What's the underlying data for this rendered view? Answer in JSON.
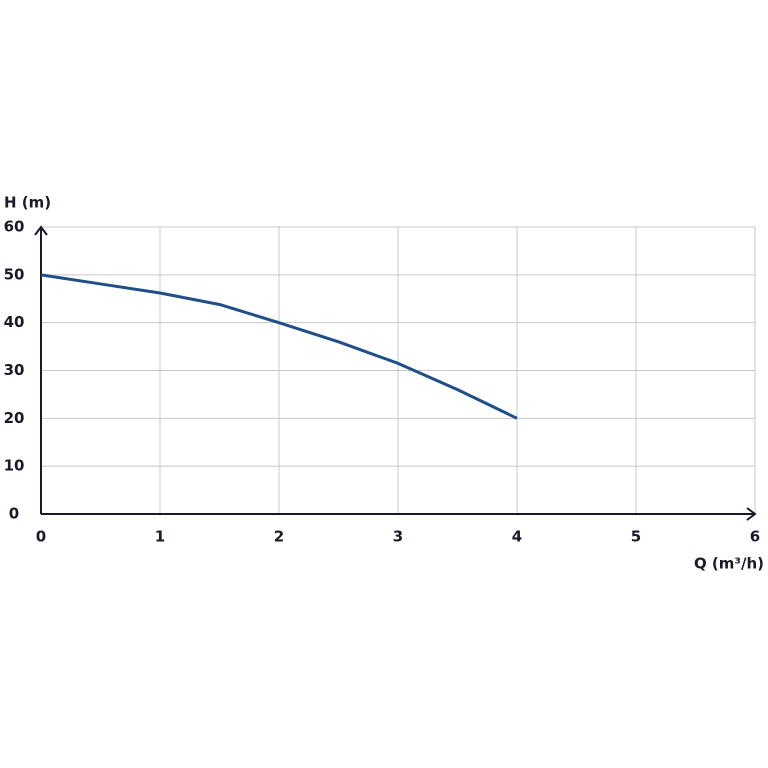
{
  "chart_data": {
    "type": "line",
    "x_label": "Q (m³/h)",
    "y_label": "H (m)",
    "x": [
      0,
      0.5,
      1,
      1.5,
      2,
      2.5,
      3,
      3.5,
      4
    ],
    "series": [
      {
        "name": "H",
        "color": "#1f4e89",
        "values": [
          50,
          48.1,
          46.2,
          43.8,
          40,
          36,
          31.5,
          26,
          20
        ]
      }
    ],
    "xlim": [
      0,
      6
    ],
    "xticks": [
      0,
      1,
      2,
      3,
      4,
      5,
      6
    ],
    "ylim": [
      0,
      60
    ],
    "yticks": [
      0,
      10,
      20,
      30,
      40,
      50,
      60
    ],
    "grid": true
  }
}
